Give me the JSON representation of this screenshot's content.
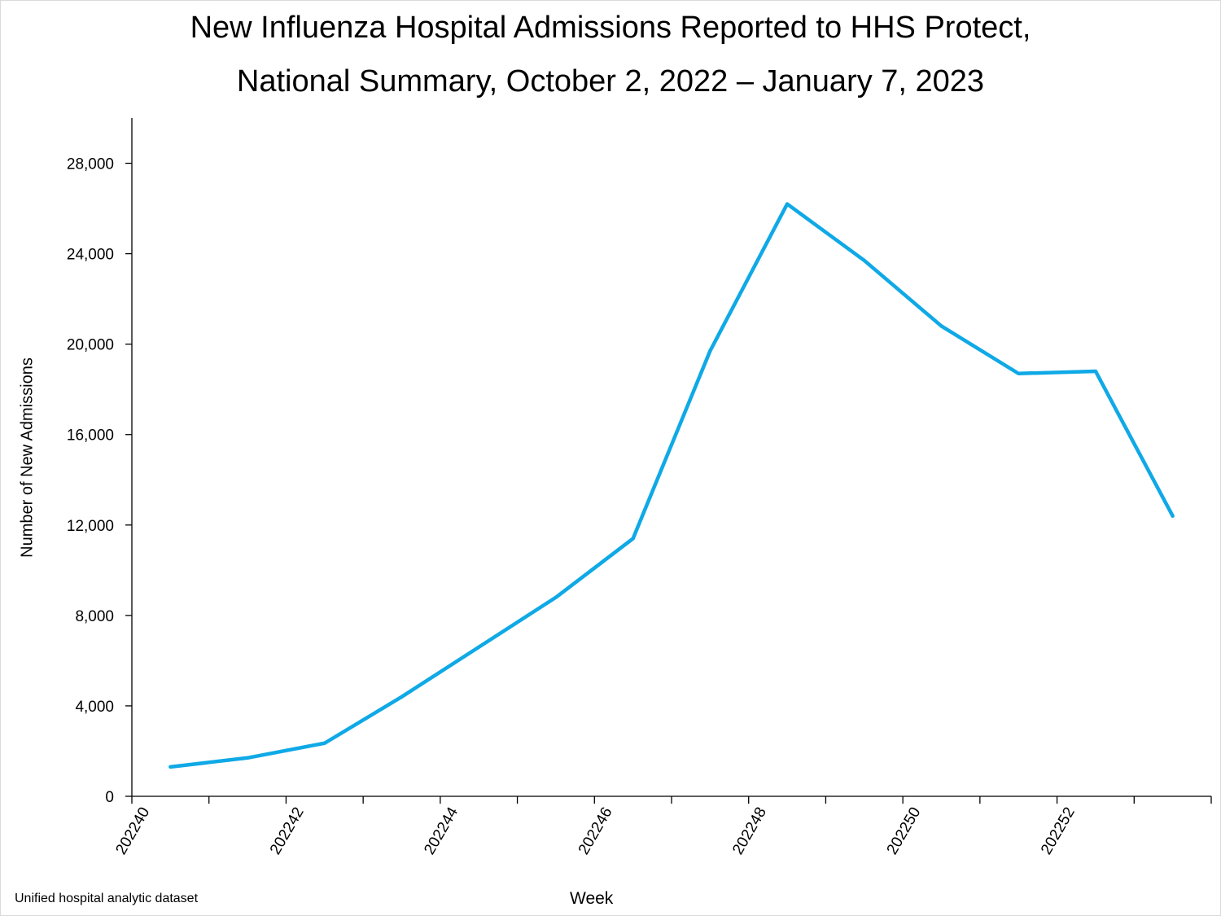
{
  "chart_data": {
    "type": "line",
    "title": "New Influenza Hospital Admissions Reported to HHS Protect,",
    "subtitle": "National Summary, October 2, 2022 – January 7, 2023",
    "xlabel": "Week",
    "ylabel": "Number of New Admissions",
    "ylim": [
      0,
      30000
    ],
    "yticks": [
      0,
      4000,
      8000,
      12000,
      16000,
      20000,
      24000,
      28000
    ],
    "ytick_labels": [
      "0",
      "4,000",
      "8,000",
      "12,000",
      "16,000",
      "20,000",
      "24,000",
      "28,000"
    ],
    "x": [
      "202240",
      "202241",
      "202242",
      "202243",
      "202244",
      "202245",
      "202246",
      "202247",
      "202248",
      "202249",
      "202250",
      "202251",
      "202252",
      "202301"
    ],
    "xtick_labels": [
      "202240",
      "",
      "202242",
      "",
      "202244",
      "",
      "202246",
      "",
      "202248",
      "",
      "202250",
      "",
      "202252",
      ""
    ],
    "series": [
      {
        "values": [
          1300,
          1700,
          2350,
          4400,
          6600,
          8800,
          11400,
          19700,
          26200,
          23700,
          20800,
          18700,
          18800,
          12400
        ],
        "color": "#0fa9e6"
      }
    ],
    "grid": false,
    "legend": "none"
  },
  "source_note": "Unified hospital analytic dataset"
}
